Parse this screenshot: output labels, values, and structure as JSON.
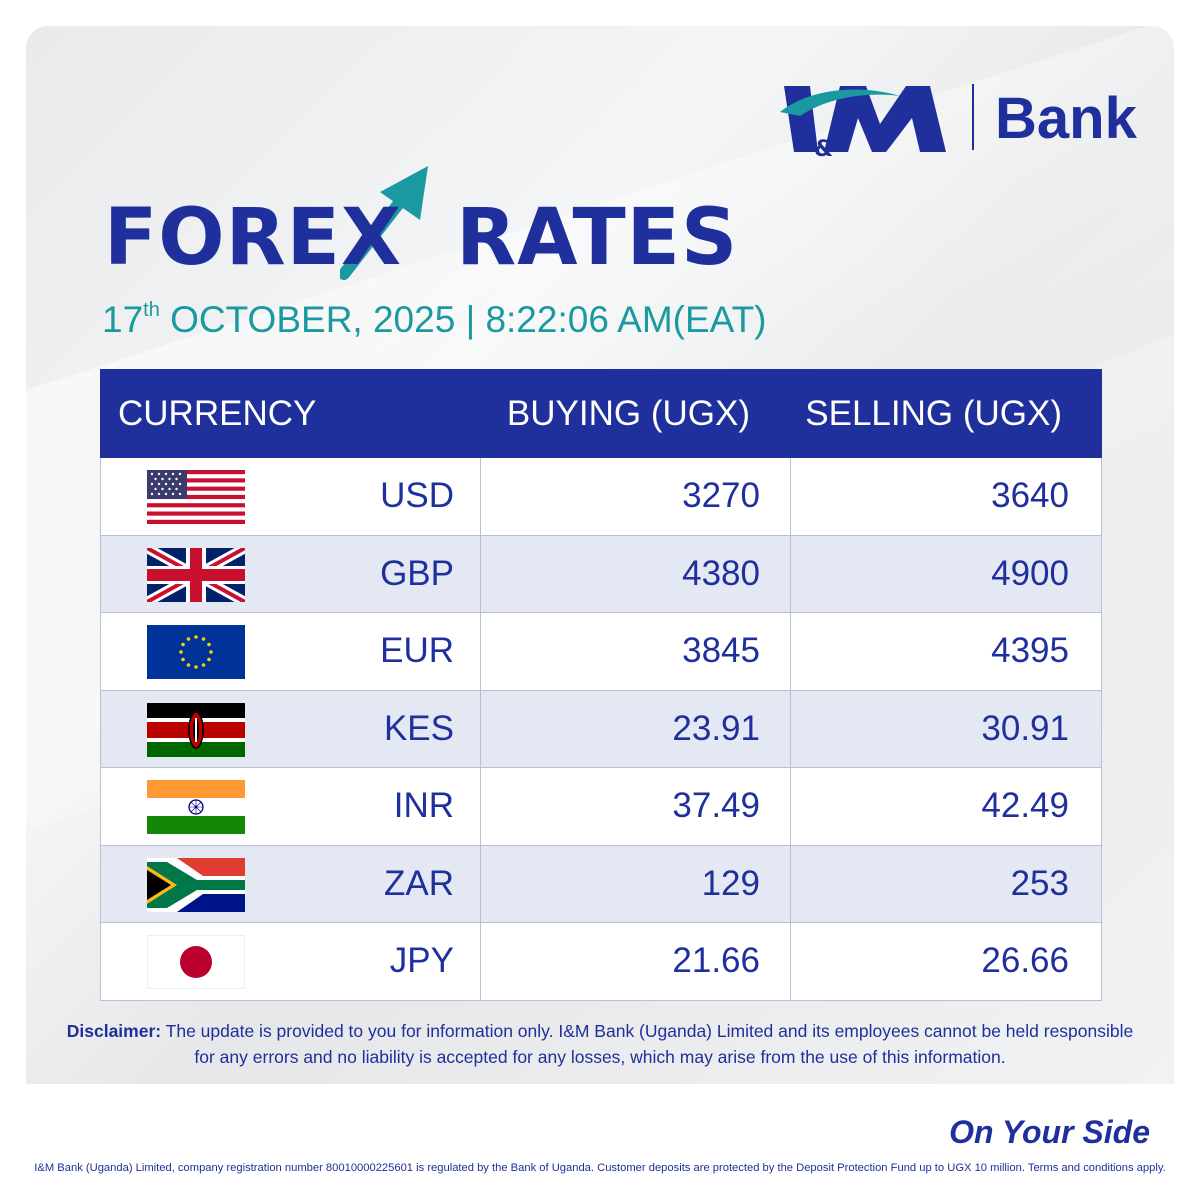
{
  "brand": {
    "logo_mark": "I&M",
    "logo_word": "Bank",
    "colors": {
      "primary": "#1f2f9c",
      "accent": "#1a9aa0",
      "row_alt": "#e4e8f3"
    }
  },
  "title": {
    "left": "FORE",
    "x_letter": "X",
    "right": "RATES"
  },
  "date": {
    "day": "17",
    "suffix": "th",
    "rest": " OCTOBER, 2025 | 8:22:06 AM(EAT)"
  },
  "table": {
    "headers": {
      "currency": "CURRENCY",
      "buying": "BUYING (UGX)",
      "selling": "SELLING (UGX)"
    },
    "rows": [
      {
        "flag": "usa-flag-icon",
        "code": "USD",
        "buying": "3270",
        "selling": "3640"
      },
      {
        "flag": "uk-flag-icon",
        "code": "GBP",
        "buying": "4380",
        "selling": "4900"
      },
      {
        "flag": "eu-flag-icon",
        "code": "EUR",
        "buying": "3845",
        "selling": "4395"
      },
      {
        "flag": "kenya-flag-icon",
        "code": "KES",
        "buying": "23.91",
        "selling": "30.91"
      },
      {
        "flag": "india-flag-icon",
        "code": "INR",
        "buying": "37.49",
        "selling": "42.49"
      },
      {
        "flag": "south-africa-flag-icon",
        "code": "ZAR",
        "buying": "129",
        "selling": "253"
      },
      {
        "flag": "japan-flag-icon",
        "code": "JPY",
        "buying": "21.66",
        "selling": "26.66"
      }
    ]
  },
  "disclaimer": {
    "label": "Disclaimer:",
    "text": " The update is provided to you for information only. I&M Bank (Uganda) Limited and its employees cannot be held responsible for any errors and no liability is accepted for any losses, which may arise from the use of this information."
  },
  "tagline": "On Your Side",
  "footer": "I&M Bank (Uganda) Limited, company registration number 80010000225601 is regulated by the Bank of Uganda. Customer deposits are protected by the Deposit Protection Fund up to UGX 10 million. Terms and conditions apply."
}
